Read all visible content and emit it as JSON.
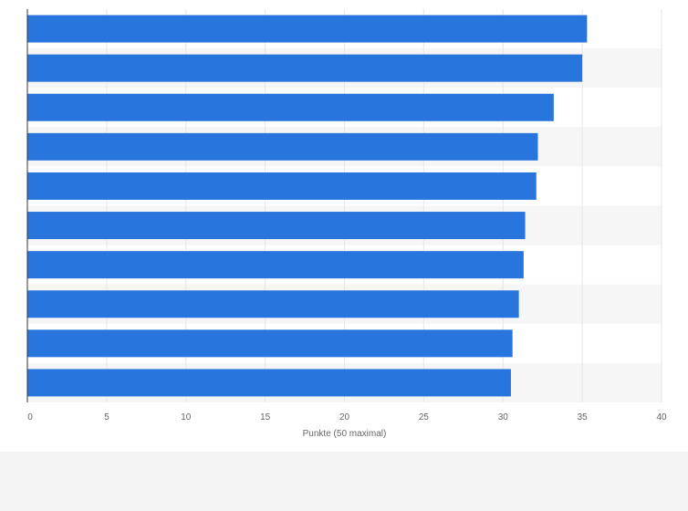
{
  "chart_data": {
    "type": "bar",
    "orientation": "horizontal",
    "categories": [
      "",
      "",
      "",
      "",
      "",
      "",
      "",
      "",
      "",
      ""
    ],
    "values": [
      35.3,
      35.0,
      33.2,
      32.2,
      32.1,
      31.4,
      31.3,
      31.0,
      30.6,
      30.5
    ],
    "xlabel": "Punkte (50 maximal)",
    "ylabel": "",
    "xlim": [
      0,
      40
    ],
    "xticks": [
      "0",
      "5",
      "10",
      "15",
      "20",
      "25",
      "30",
      "35",
      "40"
    ],
    "grid": true,
    "bar_color": "#2876dd",
    "band_color": "#f6f6f6",
    "grid_color": "#e6e6e6",
    "axis_color": "#333333"
  }
}
